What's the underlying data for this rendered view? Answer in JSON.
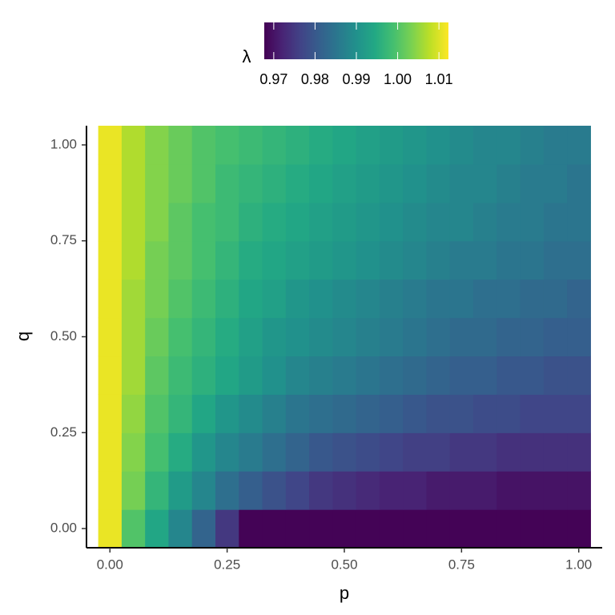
{
  "chart_data": {
    "type": "heatmap",
    "x_label": "p",
    "y_label": "q",
    "x": [
      0,
      0.05,
      0.1,
      0.15,
      0.2,
      0.25,
      0.3,
      0.35,
      0.4,
      0.45,
      0.5,
      0.55,
      0.6,
      0.65,
      0.7,
      0.75,
      0.8,
      0.85,
      0.9,
      0.95,
      1
    ],
    "y": [
      0,
      0.1,
      0.2,
      0.3,
      0.4,
      0.5,
      0.6,
      0.7,
      0.8,
      0.9,
      1
    ],
    "z": [
      [
        1.011,
        1.0,
        0.994,
        0.988,
        0.982,
        0.975,
        0.968,
        0.968,
        0.968,
        0.968,
        0.968,
        0.968,
        0.968,
        0.968,
        0.968,
        0.968,
        0.968,
        0.968,
        0.968,
        0.968,
        0.968
      ],
      [
        1.011,
        1.003,
        0.997,
        0.992,
        0.988,
        0.984,
        0.981,
        0.979,
        0.977,
        0.975,
        0.974,
        0.973,
        0.972,
        0.972,
        0.971,
        0.971,
        0.971,
        0.97,
        0.97,
        0.97,
        0.97
      ],
      [
        1.011,
        1.004,
        0.999,
        0.995,
        0.991,
        0.988,
        0.986,
        0.984,
        0.982,
        0.98,
        0.979,
        0.978,
        0.977,
        0.976,
        0.976,
        0.975,
        0.975,
        0.974,
        0.974,
        0.974,
        0.974
      ],
      [
        1.011,
        1.005,
        1.0,
        0.997,
        0.994,
        0.991,
        0.989,
        0.987,
        0.985,
        0.984,
        0.983,
        0.982,
        0.981,
        0.98,
        0.979,
        0.979,
        0.978,
        0.978,
        0.977,
        0.977,
        0.977
      ],
      [
        1.011,
        1.006,
        1.001,
        0.998,
        0.996,
        0.994,
        0.992,
        0.99,
        0.988,
        0.987,
        0.986,
        0.985,
        0.984,
        0.983,
        0.982,
        0.981,
        0.981,
        0.98,
        0.98,
        0.979,
        0.979
      ],
      [
        1.011,
        1.006,
        1.002,
        0.999,
        0.997,
        0.995,
        0.993,
        0.991,
        0.99,
        0.989,
        0.988,
        0.987,
        0.986,
        0.985,
        0.984,
        0.983,
        0.983,
        0.982,
        0.982,
        0.981,
        0.981
      ],
      [
        1.011,
        1.006,
        1.003,
        1.0,
        0.998,
        0.996,
        0.994,
        0.993,
        0.991,
        0.99,
        0.989,
        0.988,
        0.987,
        0.986,
        0.985,
        0.985,
        0.984,
        0.984,
        0.983,
        0.983,
        0.982
      ],
      [
        1.011,
        1.007,
        1.003,
        1.001,
        0.999,
        0.997,
        0.995,
        0.994,
        0.993,
        0.992,
        0.991,
        0.99,
        0.989,
        0.988,
        0.987,
        0.986,
        0.986,
        0.985,
        0.985,
        0.984,
        0.984
      ],
      [
        1.011,
        1.007,
        1.004,
        1.001,
        0.999,
        0.998,
        0.996,
        0.995,
        0.994,
        0.993,
        0.992,
        0.991,
        0.99,
        0.989,
        0.988,
        0.988,
        0.987,
        0.986,
        0.986,
        0.985,
        0.985
      ],
      [
        1.011,
        1.007,
        1.004,
        1.002,
        1.0,
        0.998,
        0.997,
        0.996,
        0.995,
        0.994,
        0.993,
        0.992,
        0.991,
        0.99,
        0.989,
        0.988,
        0.988,
        0.987,
        0.986,
        0.986,
        0.985
      ],
      [
        1.011,
        1.007,
        1.004,
        1.002,
        1.0,
        0.999,
        0.998,
        0.997,
        0.996,
        0.995,
        0.994,
        0.993,
        0.992,
        0.991,
        0.99,
        0.989,
        0.988,
        0.988,
        0.987,
        0.986,
        0.986
      ]
    ],
    "xlim": [
      -0.05,
      1.05
    ],
    "ylim": [
      -0.05,
      1.05
    ],
    "xticks": [
      {
        "value": 0,
        "label": "0.00"
      },
      0.25,
      {
        "value": 0.5,
        "label": "0.50"
      },
      0.75,
      {
        "value": 1,
        "label": "1.00"
      }
    ],
    "yticks": [
      {
        "value": 0,
        "label": "0.00"
      },
      0.25,
      {
        "value": 0.5,
        "label": "0.50"
      },
      0.75,
      {
        "value": 1,
        "label": "1.00"
      }
    ],
    "colormap": "viridis",
    "colorbar": {
      "title": "λ",
      "lim": [
        0.9677,
        1.0123
      ],
      "ticks": [
        0.97,
        0.98,
        0.99,
        {
          "value": 1,
          "label": "1.00"
        },
        1.01
      ]
    }
  }
}
